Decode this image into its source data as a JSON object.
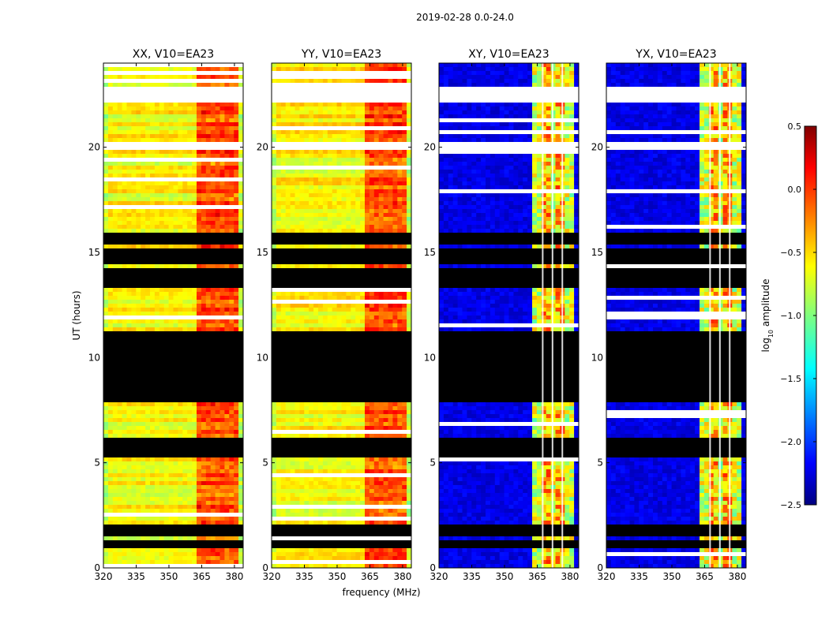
{
  "chart_data": {
    "type": "heatmap",
    "suptitle": "2019-02-28 0.0-24.0",
    "xlabel": "frequency (MHz)",
    "ylabel": "UT (hours)",
    "xlim": [
      320,
      384
    ],
    "ylim": [
      0,
      24
    ],
    "xticks": [
      320,
      335,
      350,
      365,
      380
    ],
    "yticks": [
      0,
      5,
      10,
      15,
      20
    ],
    "panels": [
      {
        "title": "XX, V10=EA23",
        "polarization": "XX",
        "kind": "parallel"
      },
      {
        "title": "YY, V10=EA23",
        "polarization": "YY",
        "kind": "parallel"
      },
      {
        "title": "XY, V10=EA23",
        "polarization": "XY",
        "kind": "cross"
      },
      {
        "title": "YX, V10=EA23",
        "polarization": "YX",
        "kind": "cross"
      }
    ],
    "colorbar": {
      "label": "log10 amplitude",
      "label_base": "log",
      "label_sub": "10",
      "label_rest": " amplitude",
      "min": -2.5,
      "max": 0.5,
      "ticks": [
        "0.5",
        "0.0",
        "−0.5",
        "−1.0",
        "−1.5",
        "−2.0",
        "−2.5"
      ],
      "colormap": "jet"
    },
    "flagged_black_ut_ranges": [
      [
        0.9,
        1.3
      ],
      [
        1.55,
        2.05
      ],
      [
        5.3,
        6.2
      ],
      [
        7.8,
        11.2
      ],
      [
        13.3,
        14.2
      ],
      [
        14.5,
        15.1
      ],
      [
        15.3,
        15.9
      ]
    ],
    "flagged_white_ut_ranges": [
      [
        22.1,
        22.8
      ],
      [
        19.9,
        20.2
      ]
    ],
    "bright_band_mhz": [
      363,
      381
    ]
  }
}
